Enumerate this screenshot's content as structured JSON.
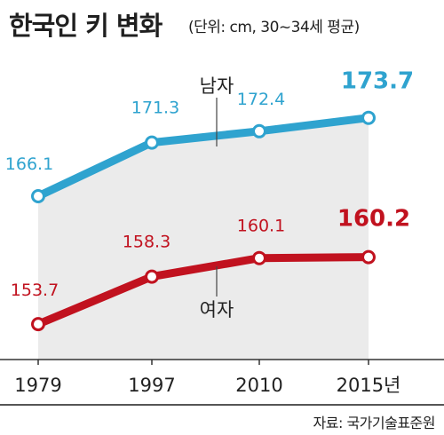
{
  "header": {
    "title": "한국인 키 변화",
    "subtitle": "(단위: cm, 30~34세 평균)"
  },
  "source": "자료: 국가기술표준원",
  "colors": {
    "male": "#2fa3cf",
    "female": "#c1121f",
    "panel": "#ebebeb",
    "axis": "#333333"
  },
  "chart_data": {
    "type": "line",
    "categories": [
      "1979",
      "1997",
      "2010",
      "2015년"
    ],
    "series": [
      {
        "name": "남자",
        "values": [
          166.1,
          171.3,
          172.4,
          173.7
        ]
      },
      {
        "name": "여자",
        "values": [
          153.7,
          158.3,
          160.1,
          160.2
        ]
      }
    ],
    "value_labels": {
      "남자": [
        "166.1",
        "171.3",
        "172.4",
        "173.7"
      ],
      "여자": [
        "153.7",
        "158.3",
        "160.1",
        "160.2"
      ]
    },
    "grid": false,
    "legend": "inline labels"
  }
}
